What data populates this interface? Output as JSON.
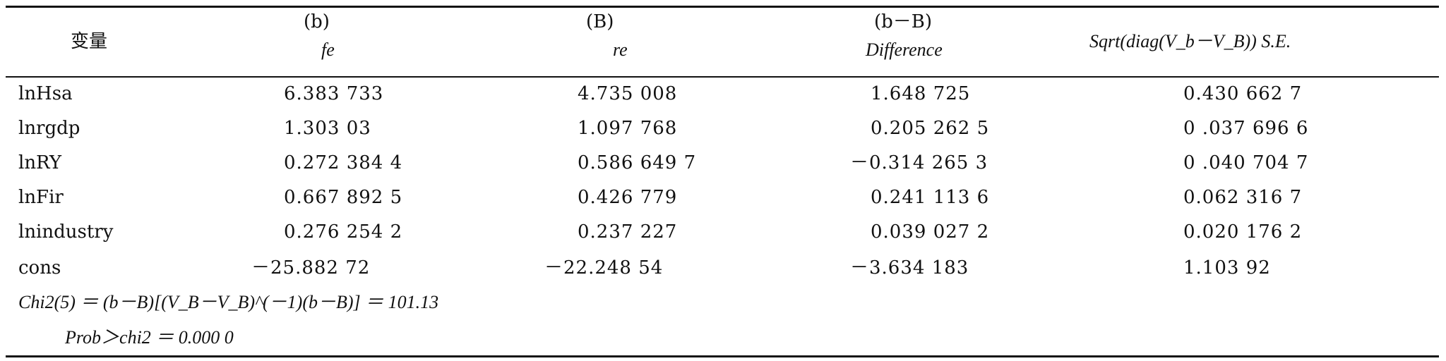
{
  "header": {
    "variable": "变量",
    "col1_top": "(b)",
    "col1_bottom": "fe",
    "col2_top": "(B)",
    "col2_bottom": "re",
    "col3_top": "(b－B)",
    "col3_bottom": "Difference",
    "col4": "Sqrt(diag(V_b－V_B)) S.E."
  },
  "rows": [
    {
      "name": "lnHsa",
      "fe": "6.383 733",
      "re": "4.735 008",
      "diff": "1.648 725",
      "se": "0.430 662 7"
    },
    {
      "name": "lnrgdp",
      "fe": "1.303 03",
      "re": "1.097 768",
      "diff": "0.205 262 5",
      "se": "0 .037 696 6"
    },
    {
      "name": "lnRY",
      "fe": "0.272 384 4",
      "re": "0.586 649 7",
      "diff": "－0.314 265 3",
      "se": "0 .040 704 7"
    },
    {
      "name": "lnFir",
      "fe": "0.667 892 5",
      "re": "0.426 779",
      "diff": "0.241 113 6",
      "se": "0.062 316 7"
    },
    {
      "name": "lnindustry",
      "fe": "0.276 254 2",
      "re": "0.237 227",
      "diff": "0.039 027 2",
      "se": "0.020 176 2"
    },
    {
      "name": "cons",
      "fe": "－25.882 72",
      "re": "－22.248 54",
      "diff": "－3.634 183",
      "se": "1.103 92"
    }
  ],
  "footer": {
    "chi2": "Chi2(5) ＝ (b－B)[(V_B－V_B)^(－1)(b－B)] ＝ 101.13",
    "prob": "Prob＞chi2 ＝ 0.000 0"
  }
}
